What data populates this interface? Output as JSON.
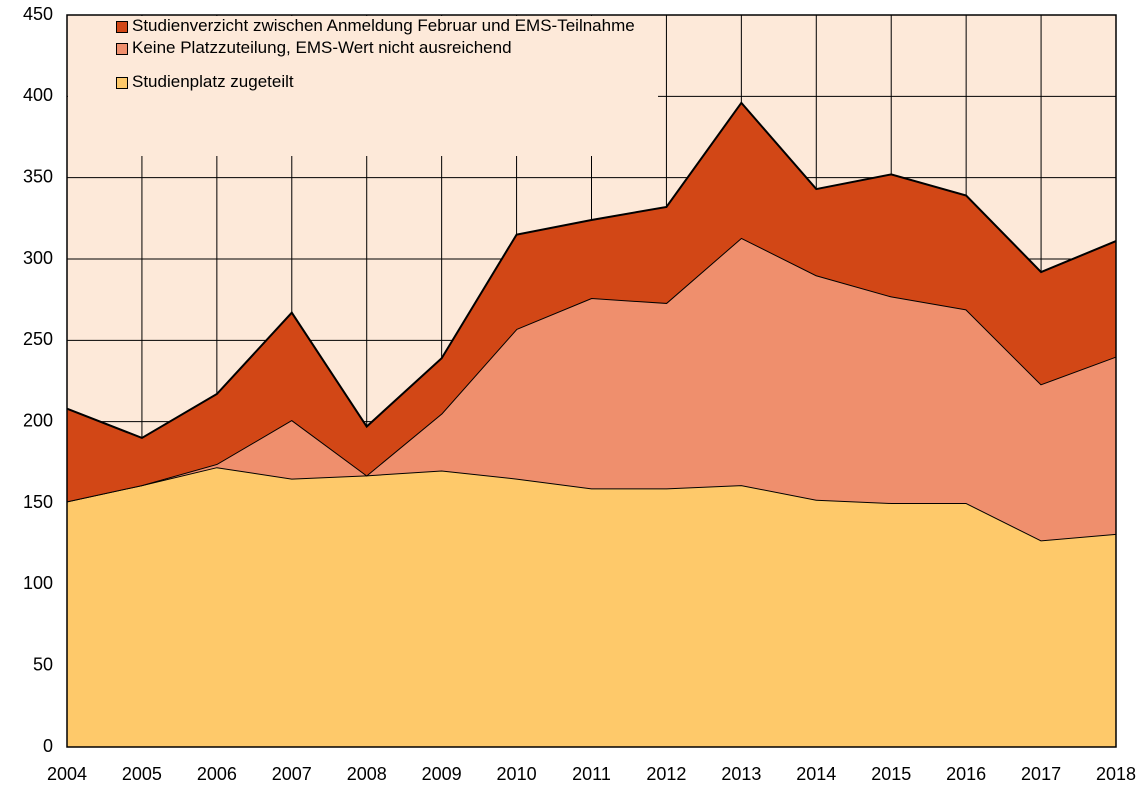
{
  "chart_data": {
    "type": "stacked_area",
    "categories": [
      "2004",
      "2005",
      "2006",
      "2007",
      "2008",
      "2009",
      "2010",
      "2011",
      "2012",
      "2013",
      "2014",
      "2015",
      "2016",
      "2017",
      "2018"
    ],
    "series": [
      {
        "name": "Studienplatz zugeteilt",
        "color": "#fec96a",
        "values": [
          151,
          161,
          172,
          165,
          167,
          170,
          165,
          159,
          159,
          161,
          152,
          150,
          150,
          127,
          131
        ]
      },
      {
        "name": "Keine Platzzuteilung, EMS-Wert nicht ausreichend",
        "color": "#ef8f6d",
        "values": [
          0,
          0,
          2,
          36,
          0,
          35,
          92,
          117,
          114,
          152,
          138,
          127,
          119,
          96,
          109
        ]
      },
      {
        "name": "Studienverzicht zwischen Anmeldung Februar und EMS-Teilnahme",
        "color": "#d24716",
        "values": [
          57,
          29,
          43,
          66,
          30,
          34,
          58,
          48,
          59,
          83,
          53,
          75,
          70,
          69,
          71
        ]
      }
    ],
    "ylim": [
      0,
      450
    ],
    "yticks": [
      0,
      50,
      100,
      150,
      200,
      250,
      300,
      350,
      400,
      450
    ],
    "grid": true,
    "plot_background": "#fde9d9",
    "legend": "upper left"
  }
}
